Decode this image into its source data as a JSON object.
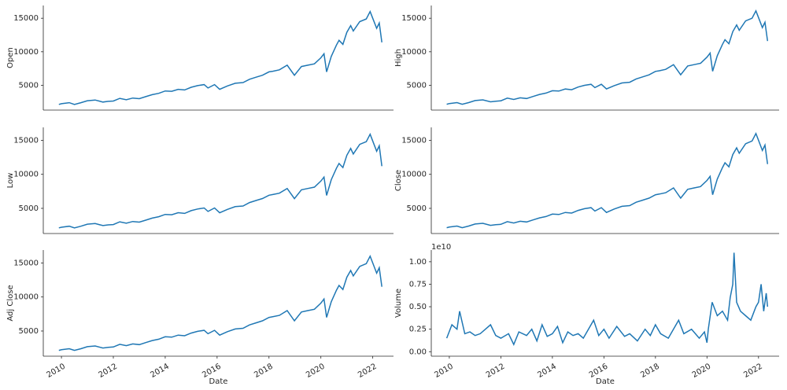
{
  "chart_data": [
    {
      "type": "line",
      "ylabel": "Open",
      "color": "#1f77b4",
      "xlim": [
        2009.3,
        2022.8
      ],
      "ylim": [
        1300,
        16900
      ],
      "yticks": [
        5000,
        10000,
        15000
      ],
      "x": [
        2009.9,
        2010.0,
        2010.3,
        2010.5,
        2010.75,
        2011.0,
        2011.3,
        2011.6,
        2011.8,
        2012.0,
        2012.25,
        2012.5,
        2012.75,
        2013.0,
        2013.25,
        2013.5,
        2013.75,
        2014.0,
        2014.25,
        2014.5,
        2014.75,
        2015.0,
        2015.25,
        2015.5,
        2015.65,
        2015.9,
        2016.1,
        2016.4,
        2016.7,
        2017.0,
        2017.25,
        2017.5,
        2017.75,
        2018.0,
        2018.15,
        2018.4,
        2018.7,
        2018.98,
        2019.25,
        2019.5,
        2019.75,
        2020.0,
        2020.12,
        2020.22,
        2020.4,
        2020.6,
        2020.7,
        2020.85,
        2021.0,
        2021.15,
        2021.25,
        2021.5,
        2021.75,
        2021.9,
        2022.0,
        2022.15,
        2022.25,
        2022.35
      ],
      "values": [
        2150,
        2250,
        2400,
        2150,
        2400,
        2700,
        2800,
        2500,
        2600,
        2650,
        3050,
        2850,
        3100,
        3000,
        3300,
        3600,
        3800,
        4150,
        4100,
        4400,
        4300,
        4700,
        4950,
        5100,
        4600,
        5100,
        4400,
        4900,
        5300,
        5400,
        5900,
        6200,
        6500,
        7000,
        7100,
        7300,
        8000,
        6500,
        7800,
        8000,
        8200,
        9100,
        9700,
        7000,
        9300,
        11000,
        11700,
        11100,
        12900,
        13900,
        13100,
        14500,
        14900,
        16000,
        15000,
        13500,
        14300,
        11400
      ]
    },
    {
      "type": "line",
      "ylabel": "High",
      "color": "#1f77b4",
      "xlim": [
        2009.3,
        2022.8
      ],
      "ylim": [
        1300,
        16900
      ],
      "yticks": [
        5000,
        10000,
        15000
      ],
      "x": [
        2009.9,
        2010.0,
        2010.3,
        2010.5,
        2010.75,
        2011.0,
        2011.3,
        2011.6,
        2011.8,
        2012.0,
        2012.25,
        2012.5,
        2012.75,
        2013.0,
        2013.25,
        2013.5,
        2013.75,
        2014.0,
        2014.25,
        2014.5,
        2014.75,
        2015.0,
        2015.25,
        2015.5,
        2015.65,
        2015.9,
        2016.1,
        2016.4,
        2016.7,
        2017.0,
        2017.25,
        2017.5,
        2017.75,
        2018.0,
        2018.15,
        2018.4,
        2018.7,
        2018.98,
        2019.25,
        2019.5,
        2019.75,
        2020.0,
        2020.12,
        2020.22,
        2020.4,
        2020.6,
        2020.7,
        2020.85,
        2021.0,
        2021.15,
        2021.25,
        2021.5,
        2021.75,
        2021.9,
        2022.0,
        2022.15,
        2022.25,
        2022.35
      ],
      "values": [
        2170,
        2270,
        2420,
        2170,
        2420,
        2720,
        2830,
        2530,
        2630,
        2680,
        3080,
        2880,
        3130,
        3030,
        3330,
        3630,
        3830,
        4190,
        4140,
        4440,
        4340,
        4740,
        5000,
        5150,
        4650,
        5150,
        4450,
        4950,
        5350,
        5450,
        5950,
        6250,
        6560,
        7070,
        7170,
        7370,
        8080,
        6570,
        7880,
        8080,
        8280,
        9190,
        9800,
        7100,
        9400,
        11100,
        11800,
        11200,
        13000,
        14000,
        13200,
        14600,
        15000,
        16100,
        15100,
        13600,
        14400,
        11600
      ]
    },
    {
      "type": "line",
      "ylabel": "Low",
      "color": "#1f77b4",
      "xlim": [
        2009.3,
        2022.8
      ],
      "ylim": [
        1300,
        16900
      ],
      "yticks": [
        5000,
        10000,
        15000
      ],
      "x": [
        2009.9,
        2010.0,
        2010.3,
        2010.5,
        2010.75,
        2011.0,
        2011.3,
        2011.6,
        2011.8,
        2012.0,
        2012.25,
        2012.5,
        2012.75,
        2013.0,
        2013.25,
        2013.5,
        2013.75,
        2014.0,
        2014.25,
        2014.5,
        2014.75,
        2015.0,
        2015.25,
        2015.5,
        2015.65,
        2015.9,
        2016.1,
        2016.4,
        2016.7,
        2017.0,
        2017.25,
        2017.5,
        2017.75,
        2018.0,
        2018.15,
        2018.4,
        2018.7,
        2018.98,
        2019.25,
        2019.5,
        2019.75,
        2020.0,
        2020.12,
        2020.22,
        2020.4,
        2020.6,
        2020.7,
        2020.85,
        2021.0,
        2021.15,
        2021.25,
        2021.5,
        2021.75,
        2021.9,
        2022.0,
        2022.15,
        2022.25,
        2022.35
      ],
      "values": [
        2130,
        2230,
        2380,
        2130,
        2380,
        2680,
        2770,
        2470,
        2570,
        2620,
        3020,
        2820,
        3070,
        2970,
        3270,
        3570,
        3770,
        4110,
        4060,
        4360,
        4260,
        4660,
        4900,
        5050,
        4550,
        5050,
        4350,
        4850,
        5250,
        5350,
        5850,
        6150,
        6440,
        6930,
        7030,
        7230,
        7920,
        6430,
        7720,
        7920,
        8120,
        9010,
        9600,
        6900,
        9200,
        10900,
        11600,
        11000,
        12800,
        13800,
        13000,
        14400,
        14800,
        15900,
        14900,
        13400,
        14200,
        11200
      ]
    },
    {
      "type": "line",
      "ylabel": "Close",
      "color": "#1f77b4",
      "xlim": [
        2009.3,
        2022.8
      ],
      "ylim": [
        1300,
        16900
      ],
      "yticks": [
        5000,
        10000,
        15000
      ],
      "x": [
        2009.9,
        2010.0,
        2010.3,
        2010.5,
        2010.75,
        2011.0,
        2011.3,
        2011.6,
        2011.8,
        2012.0,
        2012.25,
        2012.5,
        2012.75,
        2013.0,
        2013.25,
        2013.5,
        2013.75,
        2014.0,
        2014.25,
        2014.5,
        2014.75,
        2015.0,
        2015.25,
        2015.5,
        2015.65,
        2015.9,
        2016.1,
        2016.4,
        2016.7,
        2017.0,
        2017.25,
        2017.5,
        2017.75,
        2018.0,
        2018.15,
        2018.4,
        2018.7,
        2018.98,
        2019.25,
        2019.5,
        2019.75,
        2020.0,
        2020.12,
        2020.22,
        2020.4,
        2020.6,
        2020.7,
        2020.85,
        2021.0,
        2021.15,
        2021.25,
        2021.5,
        2021.75,
        2021.9,
        2022.0,
        2022.15,
        2022.25,
        2022.35
      ],
      "values": [
        2150,
        2250,
        2400,
        2150,
        2400,
        2700,
        2800,
        2500,
        2600,
        2650,
        3050,
        2850,
        3100,
        3000,
        3300,
        3600,
        3800,
        4150,
        4100,
        4400,
        4300,
        4700,
        4950,
        5100,
        4600,
        5100,
        4400,
        4900,
        5300,
        5400,
        5900,
        6200,
        6500,
        7000,
        7100,
        7300,
        8000,
        6500,
        7800,
        8000,
        8200,
        9100,
        9700,
        7000,
        9300,
        11000,
        11700,
        11100,
        12900,
        13900,
        13100,
        14500,
        14900,
        16000,
        15000,
        13500,
        14300,
        11500
      ]
    },
    {
      "type": "line",
      "ylabel": "Adj Close",
      "xlabel": "Date",
      "color": "#1f77b4",
      "xlim": [
        2009.3,
        2022.8
      ],
      "ylim": [
        1300,
        16900
      ],
      "yticks": [
        5000,
        10000,
        15000
      ],
      "xticks": [
        2010,
        2012,
        2014,
        2016,
        2018,
        2020,
        2022
      ],
      "x": [
        2009.9,
        2010.0,
        2010.3,
        2010.5,
        2010.75,
        2011.0,
        2011.3,
        2011.6,
        2011.8,
        2012.0,
        2012.25,
        2012.5,
        2012.75,
        2013.0,
        2013.25,
        2013.5,
        2013.75,
        2014.0,
        2014.25,
        2014.5,
        2014.75,
        2015.0,
        2015.25,
        2015.5,
        2015.65,
        2015.9,
        2016.1,
        2016.4,
        2016.7,
        2017.0,
        2017.25,
        2017.5,
        2017.75,
        2018.0,
        2018.15,
        2018.4,
        2018.7,
        2018.98,
        2019.25,
        2019.5,
        2019.75,
        2020.0,
        2020.12,
        2020.22,
        2020.4,
        2020.6,
        2020.7,
        2020.85,
        2021.0,
        2021.15,
        2021.25,
        2021.5,
        2021.75,
        2021.9,
        2022.0,
        2022.15,
        2022.25,
        2022.35
      ],
      "values": [
        2150,
        2250,
        2400,
        2150,
        2400,
        2700,
        2800,
        2500,
        2600,
        2650,
        3050,
        2850,
        3100,
        3000,
        3300,
        3600,
        3800,
        4150,
        4100,
        4400,
        4300,
        4700,
        4950,
        5100,
        4600,
        5100,
        4400,
        4900,
        5300,
        5400,
        5900,
        6200,
        6500,
        7000,
        7100,
        7300,
        8000,
        6500,
        7800,
        8000,
        8200,
        9100,
        9700,
        7000,
        9300,
        11000,
        11700,
        11100,
        12900,
        13900,
        13100,
        14500,
        14900,
        16000,
        15000,
        13500,
        14300,
        11500
      ]
    },
    {
      "type": "line",
      "ylabel": "Volume",
      "xlabel": "Date",
      "offset_label": "1e10",
      "color": "#1f77b4",
      "xlim": [
        2009.3,
        2022.8
      ],
      "ylim": [
        -0.05,
        1.13
      ],
      "yticks": [
        {
          "value": 0,
          "label": "0.00"
        },
        {
          "value": 0.25,
          "label": "0.25"
        },
        {
          "value": 0.5,
          "label": "0.50"
        },
        {
          "value": 0.75,
          "label": "0.75"
        },
        {
          "value": 1,
          "label": "1.00"
        }
      ],
      "xticks": [
        2010,
        2012,
        2014,
        2016,
        2018,
        2020,
        2022
      ],
      "x": [
        2009.9,
        2010.1,
        2010.3,
        2010.4,
        2010.6,
        2010.8,
        2011.0,
        2011.2,
        2011.6,
        2011.8,
        2012.0,
        2012.3,
        2012.5,
        2012.7,
        2013.0,
        2013.2,
        2013.4,
        2013.6,
        2013.8,
        2014.0,
        2014.2,
        2014.4,
        2014.6,
        2014.8,
        2015.0,
        2015.2,
        2015.6,
        2015.8,
        2016.0,
        2016.2,
        2016.5,
        2016.8,
        2017.0,
        2017.3,
        2017.6,
        2017.8,
        2018.0,
        2018.2,
        2018.5,
        2018.9,
        2019.1,
        2019.4,
        2019.7,
        2019.9,
        2020.0,
        2020.05,
        2020.2,
        2020.4,
        2020.6,
        2020.8,
        2020.9,
        2021.0,
        2021.05,
        2021.15,
        2021.3,
        2021.5,
        2021.7,
        2021.9,
        2022.0,
        2022.1,
        2022.2,
        2022.3,
        2022.35
      ],
      "values": [
        0.15,
        0.3,
        0.25,
        0.45,
        0.2,
        0.22,
        0.18,
        0.2,
        0.3,
        0.18,
        0.15,
        0.2,
        0.08,
        0.22,
        0.18,
        0.25,
        0.12,
        0.3,
        0.17,
        0.2,
        0.28,
        0.1,
        0.22,
        0.18,
        0.2,
        0.15,
        0.35,
        0.18,
        0.25,
        0.15,
        0.28,
        0.17,
        0.2,
        0.12,
        0.25,
        0.18,
        0.3,
        0.2,
        0.15,
        0.35,
        0.2,
        0.25,
        0.15,
        0.22,
        0.1,
        0.25,
        0.55,
        0.4,
        0.45,
        0.35,
        0.6,
        0.75,
        1.1,
        0.55,
        0.45,
        0.4,
        0.35,
        0.5,
        0.55,
        0.75,
        0.45,
        0.65,
        0.5
      ]
    }
  ]
}
